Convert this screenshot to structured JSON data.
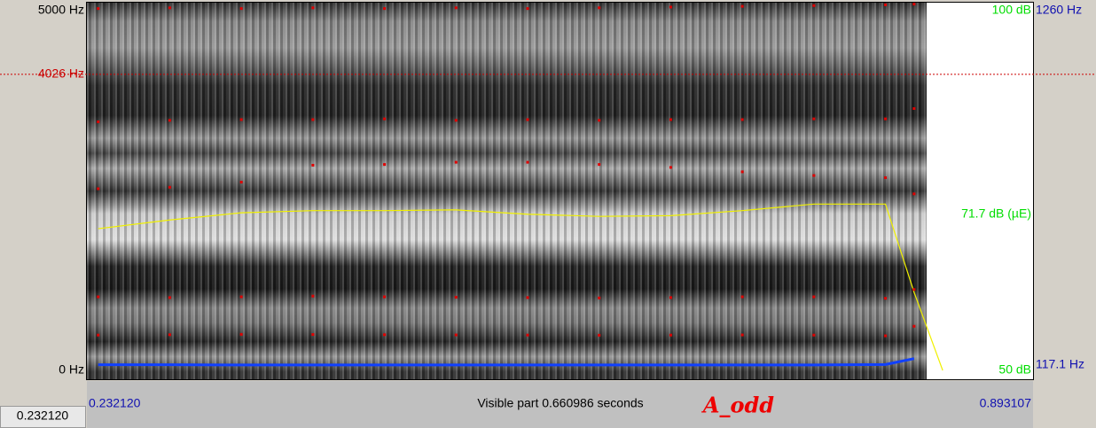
{
  "axis_labels": {
    "freq_top": "5000 Hz",
    "freq_cursor": "4026 Hz",
    "freq_bottom": "0 Hz",
    "intensity_top": "100 dB",
    "intensity_mid": "71.7 dB (µE)",
    "intensity_bottom": "50 dB",
    "pitch_top": "1260 Hz",
    "pitch_bottom": "117.1 Hz"
  },
  "time": {
    "start": "0.232120",
    "visible": "Visible part 0.660986 seconds",
    "end": "0.893107",
    "cursor": "0.232120"
  },
  "annotation": "A_odd",
  "chart_data": {
    "type": "spectrogram",
    "xlim": [
      0.23212,
      0.893107
    ],
    "ylim": [
      0,
      5000
    ],
    "cursor_hz": 4026,
    "y2lim": [
      50,
      100
    ],
    "y3lim": [
      117.1,
      1260
    ],
    "x": [
      0.24,
      0.29,
      0.34,
      0.39,
      0.44,
      0.49,
      0.54,
      0.59,
      0.64,
      0.69,
      0.74,
      0.79,
      0.81,
      0.83
    ],
    "formants": [
      {
        "name": "F1",
        "color": "#e00000",
        "values": [
          480,
          485,
          490,
          488,
          485,
          482,
          480,
          478,
          480,
          482,
          480,
          470,
          600,
          null
        ]
      },
      {
        "name": "F2",
        "color": "#e00000",
        "values": [
          1000,
          990,
          1000,
          1010,
          1000,
          995,
          990,
          985,
          990,
          1000,
          1000,
          980,
          1100,
          null
        ]
      },
      {
        "name": "F3",
        "color": "#e00000",
        "values": [
          2470,
          2490,
          2560,
          2790,
          2800,
          2830,
          2830,
          2800,
          2760,
          2700,
          2650,
          2620,
          2400,
          null
        ]
      },
      {
        "name": "F4",
        "color": "#e00000",
        "values": [
          3380,
          3400,
          3410,
          3410,
          3420,
          3400,
          3410,
          3400,
          3410,
          3410,
          3420,
          3420,
          3560,
          null
        ]
      },
      {
        "name": "F5",
        "color": "#e00000",
        "values": [
          4920,
          4930,
          4920,
          4930,
          4920,
          4930,
          4920,
          4930,
          4940,
          4950,
          4960,
          4970,
          4980,
          null
        ]
      }
    ],
    "intensity": {
      "color": "#f0f000",
      "values": [
        69.6,
        70.8,
        71.8,
        72.1,
        72.1,
        72.2,
        71.6,
        71.3,
        71.4,
        72.1,
        73.0,
        73.0,
        60.8,
        50
      ]
    },
    "pitch": {
      "color": "#1040ff",
      "values": [
        118,
        118,
        117.5,
        117.5,
        117.5,
        117.5,
        117.5,
        117.5,
        117.5,
        117.5,
        117.5,
        119,
        138,
        null
      ]
    }
  }
}
